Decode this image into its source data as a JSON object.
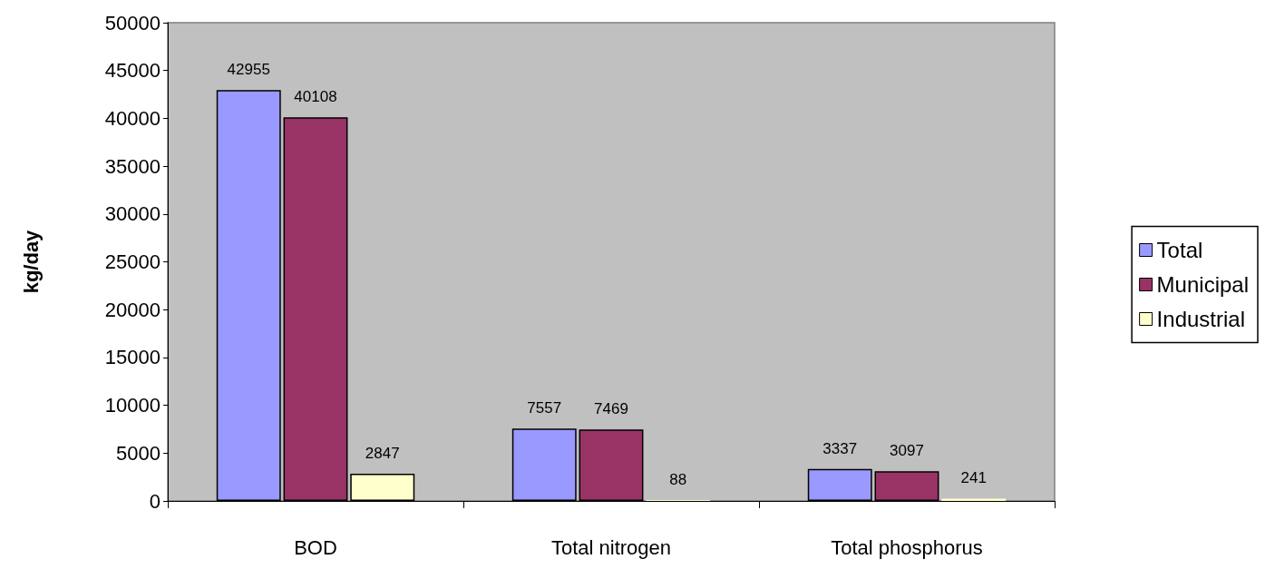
{
  "chart_data": {
    "type": "bar",
    "ylabel": "kg/day",
    "categories": [
      "BOD",
      "Total nitrogen",
      "Total phosphorus"
    ],
    "series": [
      {
        "name": "Total",
        "color": "#9999ff",
        "values": [
          42955,
          7557,
          3337
        ]
      },
      {
        "name": "Municipal",
        "color": "#993366",
        "values": [
          40108,
          7469,
          3097
        ]
      },
      {
        "name": "Industrial",
        "color": "#ffffcc",
        "values": [
          2847,
          88,
          241
        ]
      }
    ],
    "ylim": [
      0,
      50000
    ],
    "yticks": [
      0,
      5000,
      10000,
      15000,
      20000,
      25000,
      30000,
      35000,
      40000,
      45000,
      50000
    ],
    "data_labels": true,
    "grid": false,
    "legend": "right"
  }
}
